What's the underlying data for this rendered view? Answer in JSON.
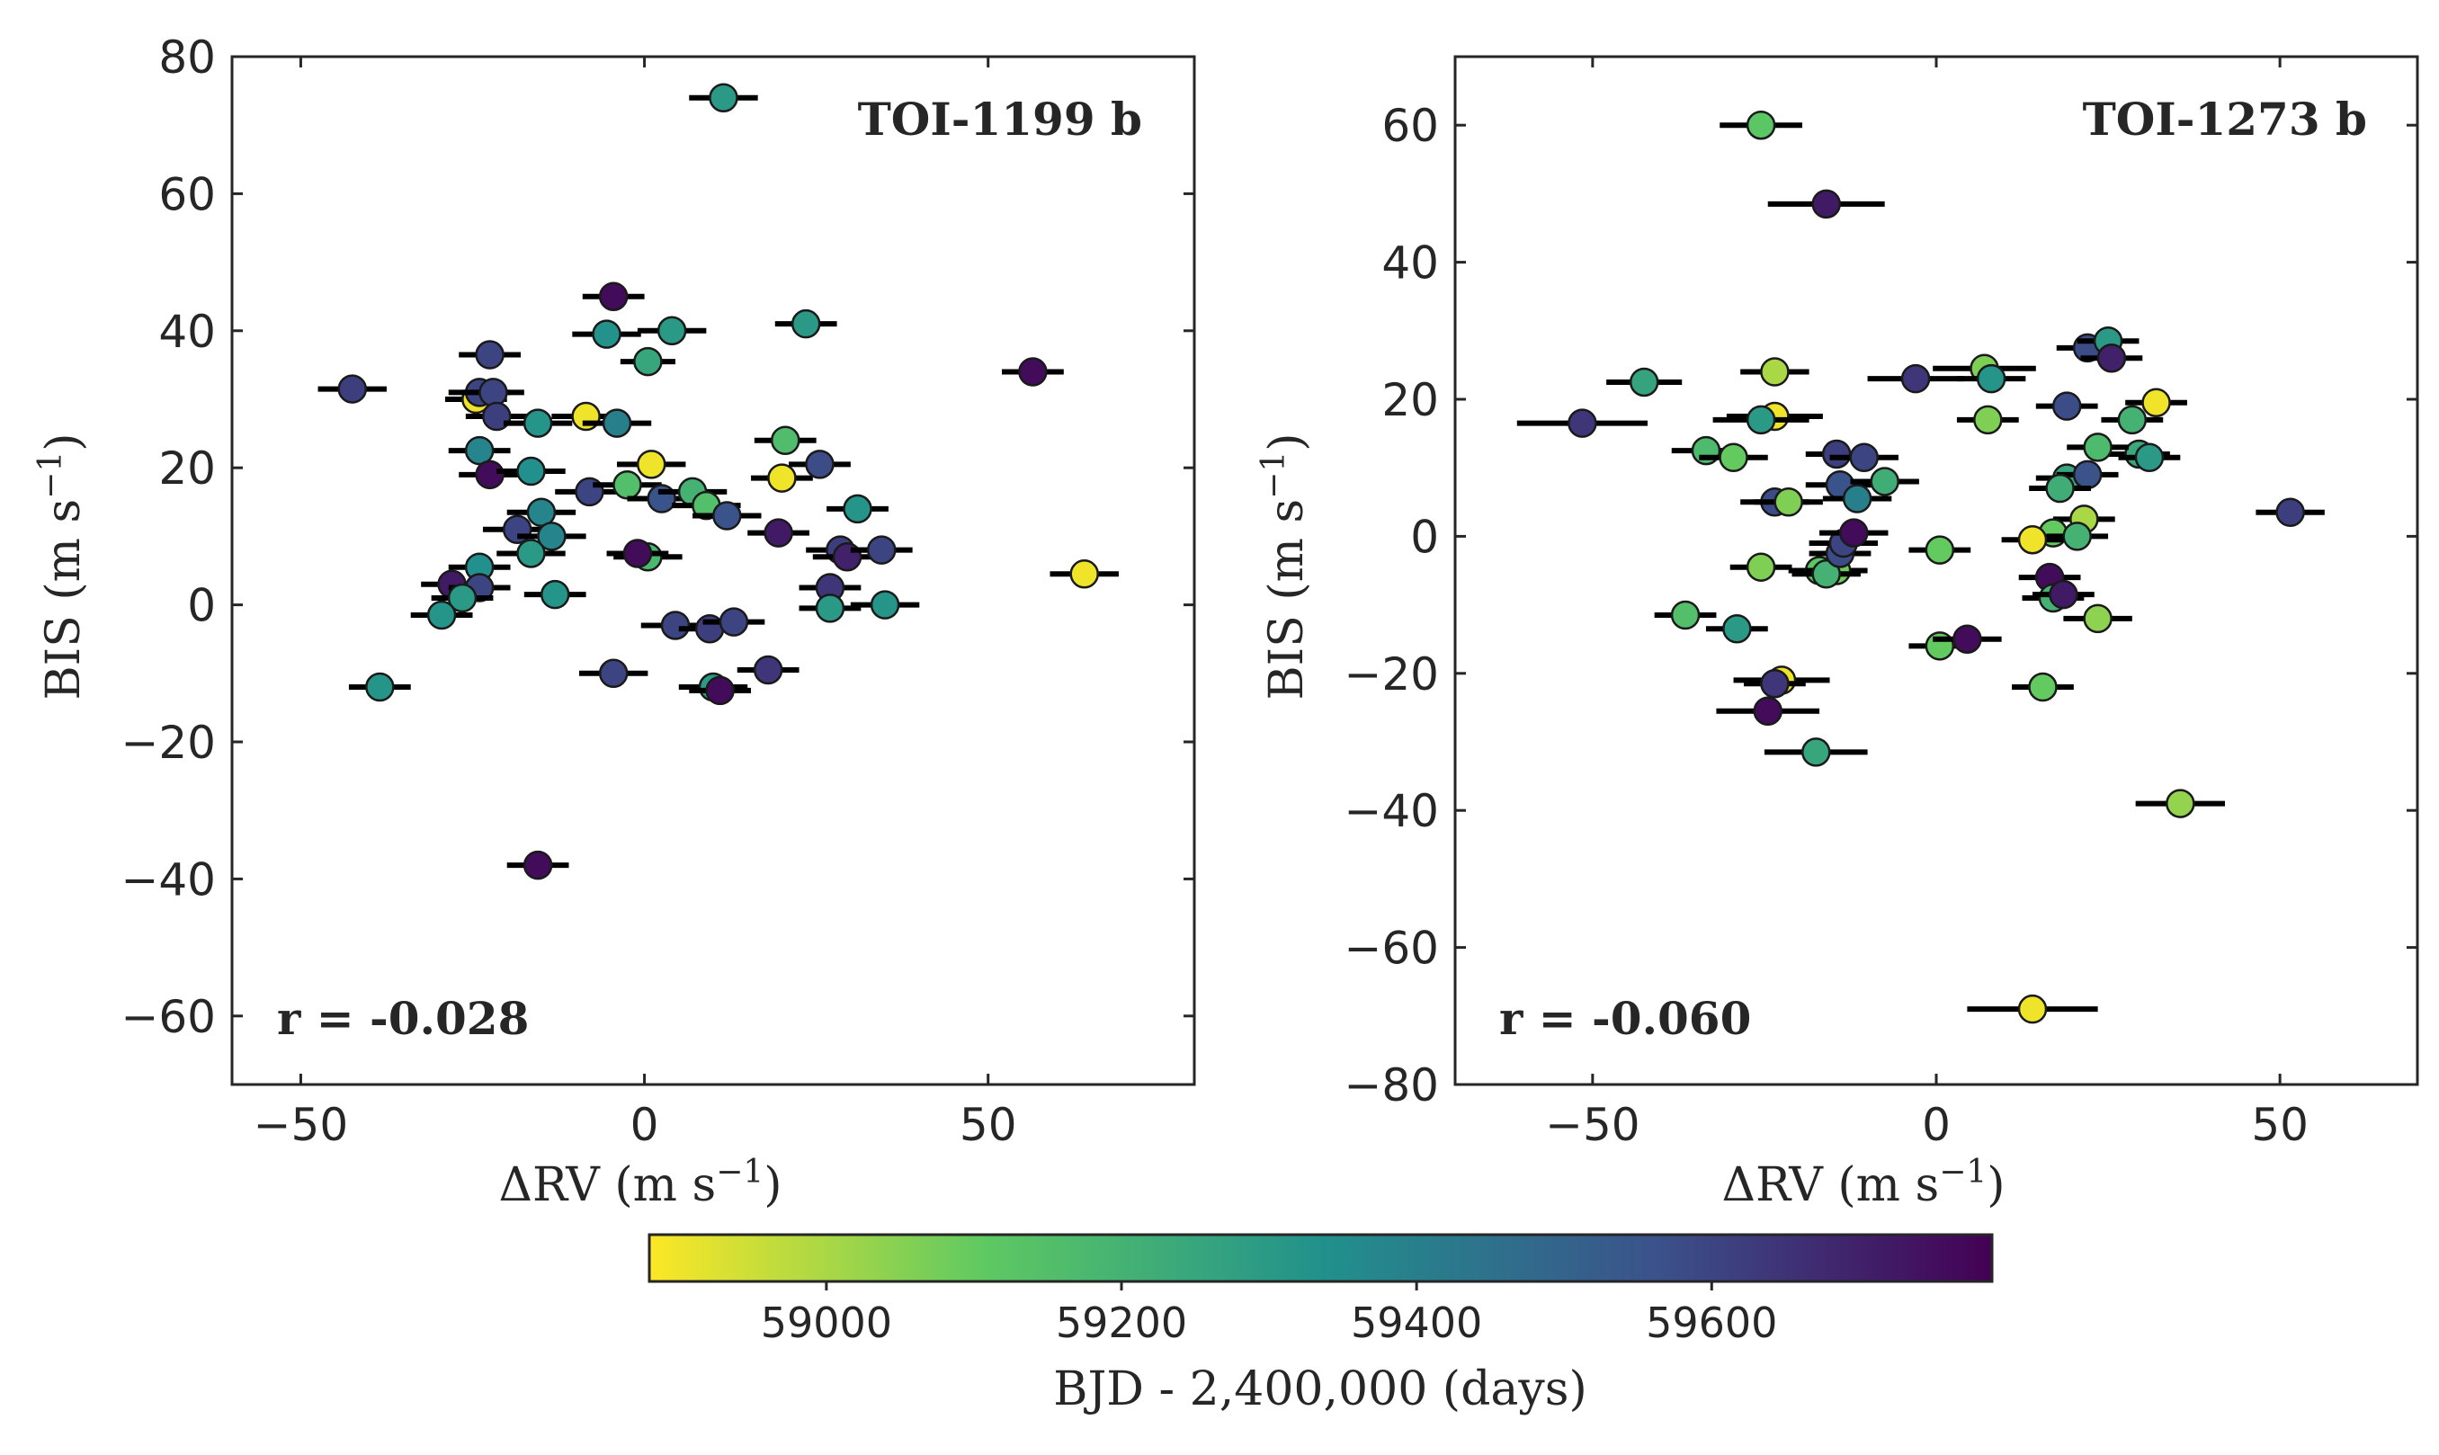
{
  "chart_data": [
    {
      "type": "scatter",
      "title": "",
      "annotation_name": "TOI-1199 b",
      "annotation_r": "r = -0.028",
      "xlabel": "ΔRV (m s",
      "xlabel_sup": "−1",
      "xlabel_end": ")",
      "ylabel": "BIS (m s",
      "ylabel_sup": "−1",
      "ylabel_end": ")",
      "xlim": [
        -60,
        80
      ],
      "ylim": [
        -70,
        80
      ],
      "xticks": [
        -50,
        0,
        50
      ],
      "xtick_labels": [
        "−50",
        "0",
        "50"
      ],
      "yticks": [
        -60,
        -40,
        -20,
        0,
        20,
        40,
        60,
        80
      ],
      "ytick_labels": [
        "−60",
        "−40",
        "−20",
        "0",
        "20",
        "40",
        "60",
        "80"
      ],
      "grid": false,
      "points": [
        {
          "x": 11.5,
          "y": 74,
          "xerr": 5,
          "t": 59300
        },
        {
          "x": -42.5,
          "y": 31.5,
          "xerr": 5,
          "t": 59620
        },
        {
          "x": -4.5,
          "y": 45,
          "xerr": 4.5,
          "t": 59760
        },
        {
          "x": -5.5,
          "y": 39.5,
          "xerr": 5,
          "t": 59330
        },
        {
          "x": 4,
          "y": 40,
          "xerr": 5,
          "t": 59300
        },
        {
          "x": 0.5,
          "y": 35.5,
          "xerr": 4,
          "t": 59250
        },
        {
          "x": 23.5,
          "y": 41,
          "xerr": 4.5,
          "t": 59300
        },
        {
          "x": 56.5,
          "y": 34,
          "xerr": 4.5,
          "t": 59760
        },
        {
          "x": -22.5,
          "y": 36.5,
          "xerr": 4.5,
          "t": 59600
        },
        {
          "x": -24.5,
          "y": 30,
          "xerr": 4.5,
          "t": 58900
        },
        {
          "x": -24,
          "y": 31,
          "xerr": 4.5,
          "t": 59600
        },
        {
          "x": -22,
          "y": 31,
          "xerr": 4.5,
          "t": 59600
        },
        {
          "x": -21.5,
          "y": 27.5,
          "xerr": 4.5,
          "t": 59620
        },
        {
          "x": -15.5,
          "y": 26.5,
          "xerr": 5,
          "t": 59320
        },
        {
          "x": -8.5,
          "y": 27.5,
          "xerr": 5,
          "t": 58900
        },
        {
          "x": -4,
          "y": 26.5,
          "xerr": 5,
          "t": 59400
        },
        {
          "x": -24,
          "y": 22.5,
          "xerr": 4.5,
          "t": 59380
        },
        {
          "x": -22.5,
          "y": 19,
          "xerr": 4.5,
          "t": 59760
        },
        {
          "x": -16.5,
          "y": 19.5,
          "xerr": 5,
          "t": 59340
        },
        {
          "x": -8,
          "y": 16.5,
          "xerr": 5,
          "t": 59600
        },
        {
          "x": -2.5,
          "y": 17.5,
          "xerr": 5,
          "t": 59150
        },
        {
          "x": 1,
          "y": 20.5,
          "xerr": 5,
          "t": 58900
        },
        {
          "x": 2.5,
          "y": 15.5,
          "xerr": 5,
          "t": 59560
        },
        {
          "x": 7,
          "y": 16.5,
          "xerr": 5,
          "t": 59200
        },
        {
          "x": 9,
          "y": 14.5,
          "xerr": 5,
          "t": 59150
        },
        {
          "x": 12,
          "y": 13,
          "xerr": 5,
          "t": 59560
        },
        {
          "x": 20.5,
          "y": 24,
          "xerr": 4.5,
          "t": 59160
        },
        {
          "x": 20,
          "y": 18.5,
          "xerr": 4.5,
          "t": 58900
        },
        {
          "x": 25.5,
          "y": 20.5,
          "xerr": 4.5,
          "t": 59580
        },
        {
          "x": -18.5,
          "y": 11,
          "xerr": 5,
          "t": 59600
        },
        {
          "x": -15,
          "y": 13.5,
          "xerr": 5,
          "t": 59380
        },
        {
          "x": -13.5,
          "y": 10,
          "xerr": 5,
          "t": 59380
        },
        {
          "x": -16.5,
          "y": 7.5,
          "xerr": 5,
          "t": 59300
        },
        {
          "x": 0.5,
          "y": 7,
          "xerr": 5,
          "t": 59180
        },
        {
          "x": -1,
          "y": 7.5,
          "xerr": 4.5,
          "t": 59760
        },
        {
          "x": 19.5,
          "y": 10.5,
          "xerr": 4.5,
          "t": 59720
        },
        {
          "x": 31,
          "y": 14,
          "xerr": 4.5,
          "t": 59320
        },
        {
          "x": 28.5,
          "y": 8,
          "xerr": 5,
          "t": 59620
        },
        {
          "x": 29.5,
          "y": 7,
          "xerr": 5,
          "t": 59700
        },
        {
          "x": 34.5,
          "y": 8,
          "xerr": 4.5,
          "t": 59600
        },
        {
          "x": 27,
          "y": 2.5,
          "xerr": 4.5,
          "t": 59640
        },
        {
          "x": 27,
          "y": -0.5,
          "xerr": 4.5,
          "t": 59300
        },
        {
          "x": 35,
          "y": 0,
          "xerr": 5,
          "t": 59320
        },
        {
          "x": 64,
          "y": 4.5,
          "xerr": 5,
          "t": 58900
        },
        {
          "x": -24,
          "y": 5.5,
          "xerr": 4.5,
          "t": 59340
        },
        {
          "x": -28,
          "y": 3,
          "xerr": 4.5,
          "t": 59720
        },
        {
          "x": -24,
          "y": 2.5,
          "xerr": 4.5,
          "t": 59600
        },
        {
          "x": -26.5,
          "y": 1,
          "xerr": 4.5,
          "t": 59300
        },
        {
          "x": -29.5,
          "y": -1.5,
          "xerr": 4.5,
          "t": 59320
        },
        {
          "x": -13,
          "y": 1.5,
          "xerr": 4.5,
          "t": 59320
        },
        {
          "x": 4.5,
          "y": -3,
          "xerr": 5,
          "t": 59600
        },
        {
          "x": 9.5,
          "y": -3.5,
          "xerr": 4.5,
          "t": 59620
        },
        {
          "x": 13,
          "y": -2.5,
          "xerr": 4.5,
          "t": 59600
        },
        {
          "x": -4.5,
          "y": -10,
          "xerr": 5,
          "t": 59600
        },
        {
          "x": 10,
          "y": -12,
          "xerr": 5,
          "t": 59300
        },
        {
          "x": 11,
          "y": -12.5,
          "xerr": 4.5,
          "t": 59760
        },
        {
          "x": 18,
          "y": -9.5,
          "xerr": 4.5,
          "t": 59640
        },
        {
          "x": -38.5,
          "y": -12,
          "xerr": 4.5,
          "t": 59320
        },
        {
          "x": -15.5,
          "y": -38,
          "xerr": 4.5,
          "t": 59760
        }
      ]
    },
    {
      "type": "scatter",
      "title": "",
      "annotation_name": "TOI-1273 b",
      "annotation_r": "r = -0.060",
      "xlabel": "ΔRV (m s",
      "xlabel_sup": "−1",
      "xlabel_end": ")",
      "ylabel": "BIS (m s",
      "ylabel_sup": "−1",
      "ylabel_end": ")",
      "xlim": [
        -70,
        70
      ],
      "ylim": [
        -80,
        70
      ],
      "xticks": [
        -50,
        0,
        50
      ],
      "xtick_labels": [
        "−50",
        "0",
        "50"
      ],
      "yticks": [
        -80,
        -60,
        -40,
        -20,
        0,
        20,
        40,
        60
      ],
      "ytick_labels": [
        "−80",
        "−60",
        "−40",
        "−20",
        "0",
        "20",
        "40",
        "60"
      ],
      "grid": false,
      "points": [
        {
          "x": -25.5,
          "y": 60,
          "xerr": 6,
          "t": 59120
        },
        {
          "x": -16,
          "y": 48.5,
          "xerr": 8.5,
          "t": 59720
        },
        {
          "x": -51.5,
          "y": 16.5,
          "xerr": 9.5,
          "t": 59640
        },
        {
          "x": -42.5,
          "y": 22.5,
          "xerr": 5.5,
          "t": 59260
        },
        {
          "x": -23.5,
          "y": 24,
          "xerr": 5,
          "t": 59000
        },
        {
          "x": -23.5,
          "y": 17.5,
          "xerr": 7,
          "t": 58900
        },
        {
          "x": -25.5,
          "y": 17,
          "xerr": 7,
          "t": 59300
        },
        {
          "x": -33.5,
          "y": 12.5,
          "xerr": 5,
          "t": 59170
        },
        {
          "x": -29.5,
          "y": 11.5,
          "xerr": 5,
          "t": 59100
        },
        {
          "x": -23.5,
          "y": 5,
          "xerr": 5,
          "t": 59580
        },
        {
          "x": -21.5,
          "y": 5,
          "xerr": 5,
          "t": 59060
        },
        {
          "x": -14.5,
          "y": 12,
          "xerr": 4.5,
          "t": 59620
        },
        {
          "x": -14,
          "y": 7.5,
          "xerr": 5,
          "t": 59560
        },
        {
          "x": -11.5,
          "y": 5.5,
          "xerr": 5,
          "t": 59400
        },
        {
          "x": -10.5,
          "y": 11.5,
          "xerr": 5,
          "t": 59600
        },
        {
          "x": -7.5,
          "y": 8,
          "xerr": 5,
          "t": 59220
        },
        {
          "x": -3,
          "y": 23,
          "xerr": 7,
          "t": 59640
        },
        {
          "x": 7,
          "y": 24.5,
          "xerr": 7.5,
          "t": 59060
        },
        {
          "x": 8,
          "y": 23,
          "xerr": 5,
          "t": 59320
        },
        {
          "x": 7.5,
          "y": 17,
          "xerr": 4.5,
          "t": 59060
        },
        {
          "x": 19,
          "y": 19,
          "xerr": 4.5,
          "t": 59580
        },
        {
          "x": 22,
          "y": 27.5,
          "xerr": 4.5,
          "t": 59580
        },
        {
          "x": 25,
          "y": 28.5,
          "xerr": 4.5,
          "t": 59300
        },
        {
          "x": 25.5,
          "y": 26,
          "xerr": 4.5,
          "t": 59700
        },
        {
          "x": 28.5,
          "y": 17,
          "xerr": 4.5,
          "t": 59200
        },
        {
          "x": 32,
          "y": 19.5,
          "xerr": 4.5,
          "t": 58900
        },
        {
          "x": 29.5,
          "y": 12,
          "xerr": 4.5,
          "t": 59240
        },
        {
          "x": 31,
          "y": 11.5,
          "xerr": 4.5,
          "t": 59300
        },
        {
          "x": 23.5,
          "y": 13,
          "xerr": 4.5,
          "t": 59170
        },
        {
          "x": 19,
          "y": 8.5,
          "xerr": 4.5,
          "t": 59250
        },
        {
          "x": 22,
          "y": 9,
          "xerr": 4.5,
          "t": 59560
        },
        {
          "x": 18,
          "y": 7,
          "xerr": 4.5,
          "t": 59220
        },
        {
          "x": 21.5,
          "y": 2.5,
          "xerr": 4.5,
          "t": 59000
        },
        {
          "x": 17,
          "y": 0.5,
          "xerr": 4.5,
          "t": 59100
        },
        {
          "x": 20.5,
          "y": 0,
          "xerr": 4.5,
          "t": 59200
        },
        {
          "x": 14,
          "y": -0.5,
          "xerr": 4.5,
          "t": 58900
        },
        {
          "x": 51.5,
          "y": 3.5,
          "xerr": 5,
          "t": 59620
        },
        {
          "x": -25.5,
          "y": -4.5,
          "xerr": 4.5,
          "t": 59060
        },
        {
          "x": -17,
          "y": -5,
          "xerr": 4.5,
          "t": 59120
        },
        {
          "x": -14.5,
          "y": -5,
          "xerr": 4.5,
          "t": 59080
        },
        {
          "x": -16,
          "y": -5.5,
          "xerr": 5,
          "t": 59200
        },
        {
          "x": -14,
          "y": -2.5,
          "xerr": 4.5,
          "t": 59580
        },
        {
          "x": -13.5,
          "y": -1,
          "xerr": 5,
          "t": 59600
        },
        {
          "x": -12,
          "y": 0.5,
          "xerr": 5,
          "t": 59760
        },
        {
          "x": 0.5,
          "y": -2,
          "xerr": 4.5,
          "t": 59100
        },
        {
          "x": 16.5,
          "y": -6,
          "xerr": 4.5,
          "t": 59760
        },
        {
          "x": 17,
          "y": -9,
          "xerr": 4.5,
          "t": 59200
        },
        {
          "x": 18.5,
          "y": -8.5,
          "xerr": 4.5,
          "t": 59720
        },
        {
          "x": 23.5,
          "y": -12,
          "xerr": 5,
          "t": 59040
        },
        {
          "x": -36.5,
          "y": -11.5,
          "xerr": 4.5,
          "t": 59150
        },
        {
          "x": -29,
          "y": -13.5,
          "xerr": 4.5,
          "t": 59300
        },
        {
          "x": 0.5,
          "y": -16,
          "xerr": 4.5,
          "t": 59100
        },
        {
          "x": 4.5,
          "y": -15,
          "xerr": 5,
          "t": 59760
        },
        {
          "x": 15.5,
          "y": -22,
          "xerr": 4.5,
          "t": 59100
        },
        {
          "x": -22.5,
          "y": -21,
          "xerr": 7,
          "t": 58900
        },
        {
          "x": -23.5,
          "y": -21.5,
          "xerr": 4.5,
          "t": 59640
        },
        {
          "x": -24.5,
          "y": -25.5,
          "xerr": 7.5,
          "t": 59760
        },
        {
          "x": -17.5,
          "y": -31.5,
          "xerr": 7.5,
          "t": 59250
        },
        {
          "x": 35.5,
          "y": -39,
          "xerr": 6.5,
          "t": 59030
        },
        {
          "x": 14,
          "y": -69,
          "xerr": 9.5,
          "t": 58900
        }
      ]
    }
  ],
  "colorbar": {
    "label": "BJD - 2,400,000 (days)",
    "range": [
      58880,
      59790
    ],
    "ticks": [
      59000,
      59200,
      59400,
      59600
    ],
    "tick_labels": [
      "59000",
      "59200",
      "59400",
      "59600"
    ],
    "colormap": "viridis_r",
    "stops": [
      "#fde725",
      "#5ec962",
      "#21918c",
      "#3b528b",
      "#440154"
    ]
  },
  "colors": {
    "axes": "#262626",
    "errorbar": "#000000",
    "marker_edge": "#1a1a1a"
  }
}
